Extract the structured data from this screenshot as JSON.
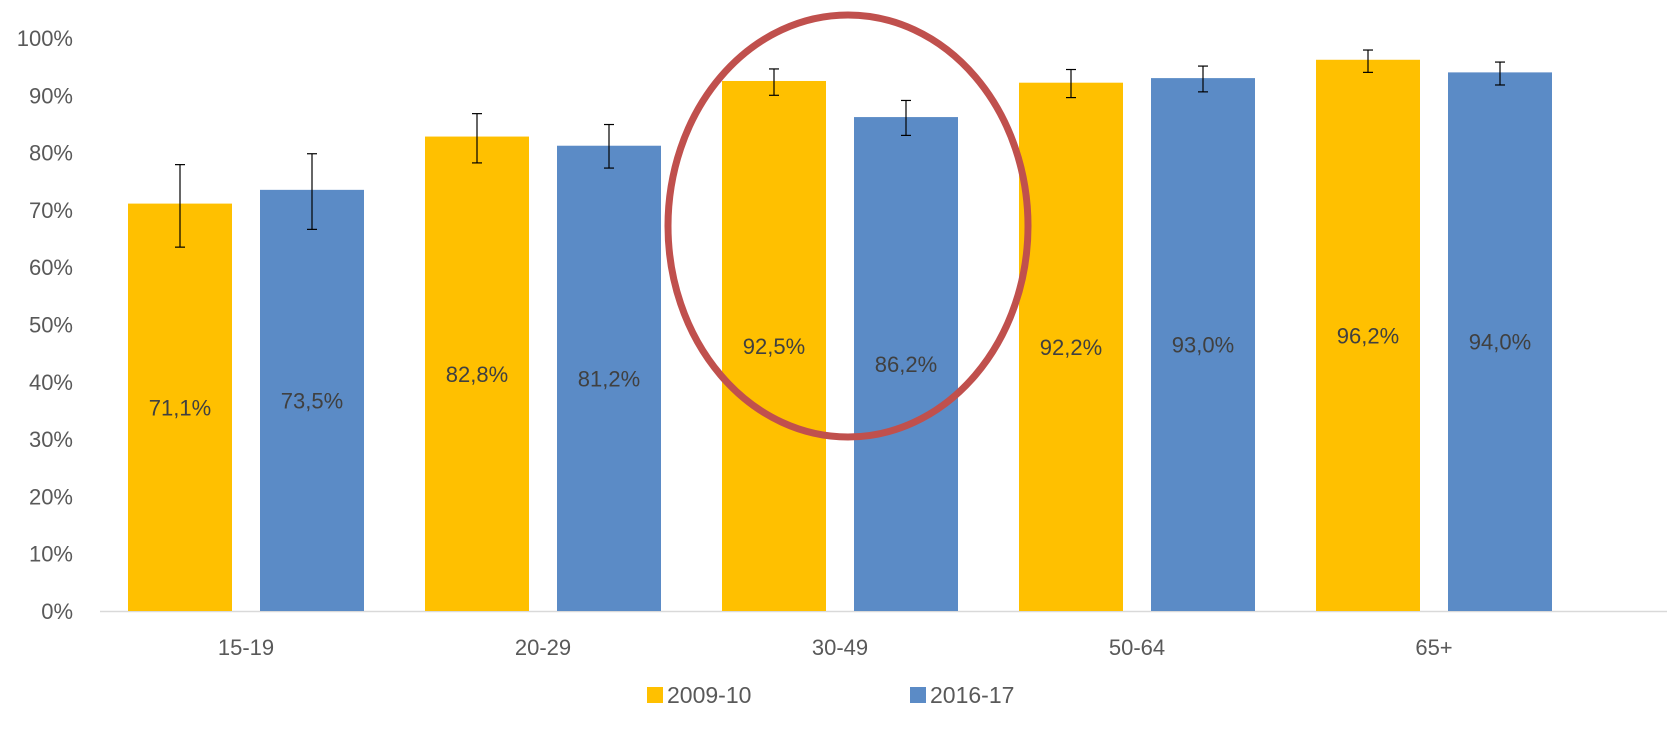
{
  "chart_data": {
    "type": "bar",
    "categories": [
      "15-19",
      "20-29",
      "30-49",
      "50-64",
      "65+"
    ],
    "series": [
      {
        "name": "2009-10",
        "color": "#FFC000",
        "values": [
          71.1,
          82.8,
          92.5,
          92.2,
          96.2
        ],
        "labels": [
          "71,1%",
          "82,8%",
          "92,5%",
          "92,2%",
          "96,2%"
        ],
        "error_low": [
          63.5,
          78.2,
          90.0,
          89.6,
          94.0
        ],
        "error_high": [
          77.9,
          86.8,
          94.6,
          94.5,
          97.9
        ]
      },
      {
        "name": "2016-17",
        "color": "#5B8BC6",
        "values": [
          73.5,
          81.2,
          86.2,
          93.0,
          94.0
        ],
        "labels": [
          "73,5%",
          "81,2%",
          "86,2%",
          "93,0%",
          "94,0%"
        ],
        "error_low": [
          66.6,
          77.3,
          83.0,
          90.6,
          91.8
        ],
        "error_high": [
          79.8,
          84.9,
          89.1,
          95.1,
          95.8
        ]
      }
    ],
    "y_ticks": [
      "0%",
      "10%",
      "20%",
      "30%",
      "40%",
      "50%",
      "60%",
      "70%",
      "80%",
      "90%",
      "100%"
    ],
    "ylim": [
      0,
      100
    ],
    "grid": false,
    "legend_position": "bottom",
    "annotation": {
      "shape": "ellipse",
      "category": "30-49",
      "color": "#C0504D"
    }
  }
}
